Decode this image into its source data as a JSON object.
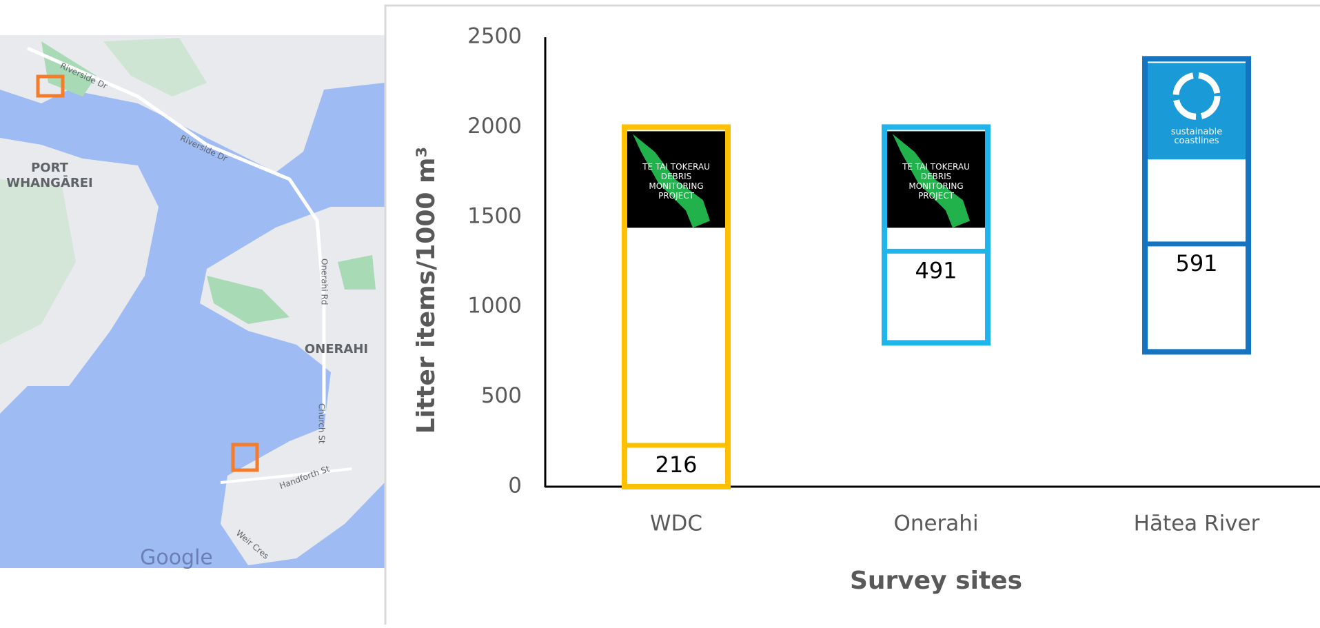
{
  "map": {
    "place_labels": [
      "PORT",
      "WHANGĀREI",
      "ONERAHI"
    ],
    "road_labels": [
      "Riverside Dr",
      "Riverside Dr",
      "Onerahi Rd",
      "Church St",
      "Handforth St",
      "Weir Cres"
    ],
    "attribution": "Google"
  },
  "chart_data": {
    "type": "range-box",
    "y_label": "Litter items/1000 m³",
    "x_label": "Survey sites",
    "categories": [
      "WDC",
      "Onerahi",
      "Hātea River"
    ],
    "low": [
      0,
      800,
      750
    ],
    "high": [
      2000,
      2000,
      2380
    ],
    "line": [
      230,
      1310,
      1350
    ],
    "line_labels": [
      216,
      491,
      591
    ],
    "colors": [
      "#ffc000",
      "#1fb4ea",
      "#1574c2"
    ],
    "logos": [
      [
        "TE TAI TOKERAU",
        "DEBRIS",
        "MONITORING",
        "PROJECT"
      ],
      [
        "TE TAI TOKERAU",
        "DEBRIS",
        "MONITORING",
        "PROJECT"
      ],
      [
        "sustainable",
        "coastlines"
      ]
    ],
    "ylim": [
      0,
      2500
    ],
    "yticks": [
      0,
      500,
      1000,
      1500,
      2000,
      2500
    ]
  }
}
